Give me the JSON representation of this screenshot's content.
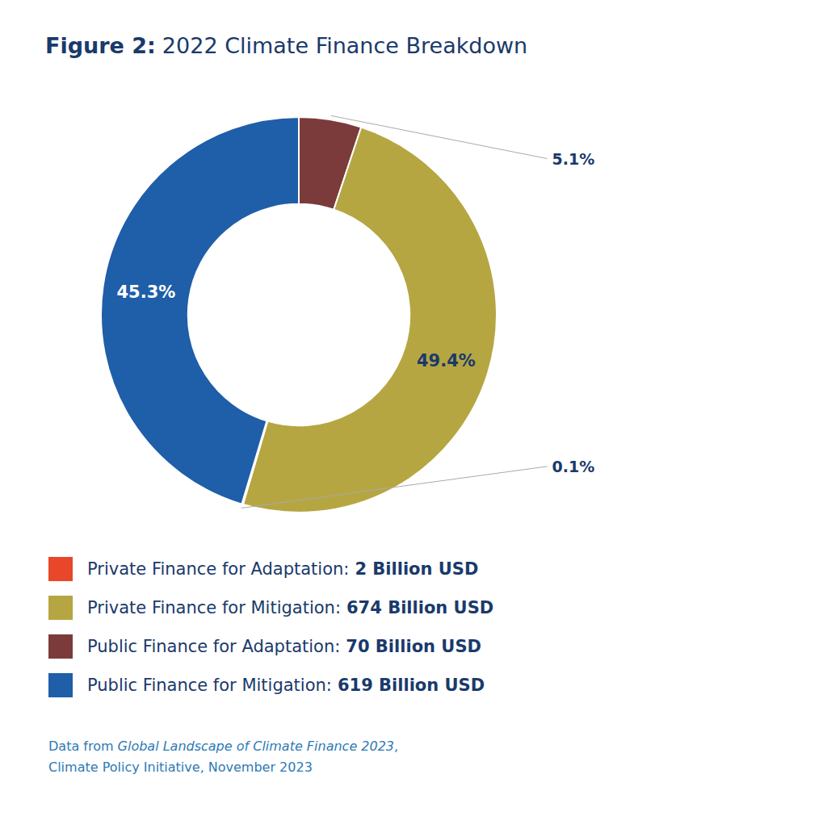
{
  "chart_data": {
    "type": "donut",
    "title_prefix": "Figure 2:",
    "title": "2022 Climate Finance Breakdown",
    "values": [
      5.1,
      49.4,
      0.1,
      45.3
    ],
    "value_labels": [
      "5.1%",
      "49.4%",
      "0.1%",
      "45.3%"
    ],
    "colors": [
      "#7B3B3B",
      "#B5A642",
      "#E8472A",
      "#1F5EA8"
    ],
    "data_labels": true,
    "legend_items": [
      {
        "name": "Private Finance for Adaptation:",
        "amount": 2,
        "amount_label": "2 Billion USD",
        "color": "#E8472A"
      },
      {
        "name": "Private Finance for Mitigation:",
        "amount": 674,
        "amount_label": "674 Billion USD",
        "color": "#B5A642"
      },
      {
        "name": "Public Finance for Adaptation:",
        "amount": 70,
        "amount_label": "70 Billion USD",
        "color": "#7B3B3B"
      },
      {
        "name": "Public Finance for Mitigation:",
        "amount": 619,
        "amount_label": "619 Billion USD",
        "color": "#1F5EA8"
      }
    ],
    "source": [
      [
        {
          "text": "Data from",
          "italic": false
        },
        {
          "text": "Global Landscape of Climate Finance 2023",
          "italic": true
        },
        {
          "text": ",",
          "italic": false
        }
      ],
      [
        {
          "text": "Climate Policy Initiative, November 2023",
          "italic": false
        }
      ]
    ]
  }
}
